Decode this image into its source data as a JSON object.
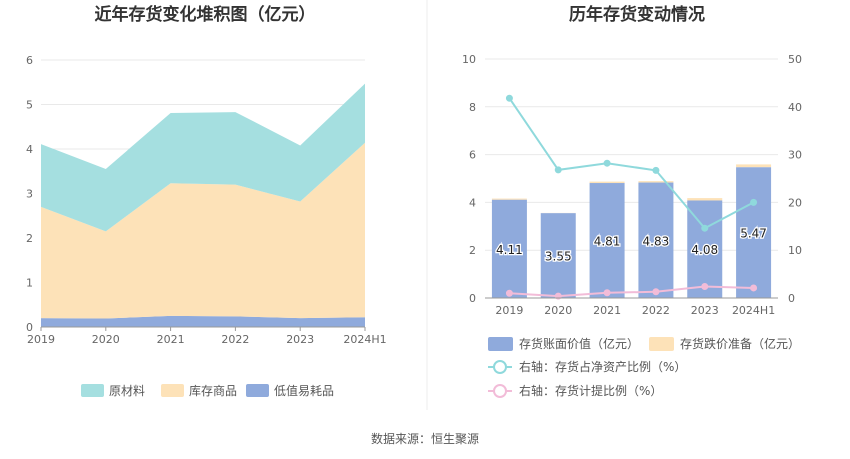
{
  "source_text": "数据来源：恒生聚源",
  "chart_data": [
    {
      "type": "area",
      "stacked": true,
      "title": "近年存货变化堆积图（亿元）",
      "categories": [
        "2019",
        "2020",
        "2021",
        "2022",
        "2023",
        "2024H1"
      ],
      "ylim": [
        0,
        6
      ],
      "yticks": [
        0,
        1,
        2,
        3,
        4,
        5,
        6
      ],
      "grid": true,
      "legend_position": "bottom",
      "series": [
        {
          "name": "低值易耗品",
          "color": "#8faadc",
          "values": [
            0.2,
            0.19,
            0.25,
            0.24,
            0.2,
            0.22
          ]
        },
        {
          "name": "库存商品",
          "color": "#fde2b8",
          "values": [
            2.5,
            1.96,
            2.98,
            2.96,
            2.62,
            3.92
          ]
        },
        {
          "name": "原材料",
          "color": "#a5dfe0",
          "values": [
            1.41,
            1.4,
            1.58,
            1.63,
            1.26,
            1.33
          ]
        }
      ],
      "legend_order": [
        "原材料",
        "库存商品",
        "低值易耗品"
      ]
    },
    {
      "type": "bar",
      "title": "历年存货变动情况",
      "categories": [
        "2019",
        "2020",
        "2021",
        "2022",
        "2023",
        "2024H1"
      ],
      "ylim": [
        0,
        10
      ],
      "yticks": [
        0,
        2,
        4,
        6,
        8,
        10
      ],
      "y2lim": [
        0,
        50
      ],
      "y2ticks": [
        0,
        10,
        20,
        30,
        40,
        50
      ],
      "grid": true,
      "legend_position": "bottom",
      "bars": [
        {
          "name": "存货账面价值（亿元）",
          "color": "#8faadc",
          "values": [
            4.11,
            3.55,
            4.81,
            4.83,
            4.08,
            5.47
          ],
          "labels": [
            "4.11",
            "3.55",
            "4.81",
            "4.83",
            "4.08",
            "5.47"
          ]
        },
        {
          "name": "存货跌价准备（亿元）",
          "color": "#fde2b8",
          "values": [
            0.05,
            0.01,
            0.06,
            0.06,
            0.1,
            0.12
          ]
        }
      ],
      "lines": [
        {
          "name": "右轴：存货占净资产比例（%）",
          "color": "#8fd9dc",
          "axis": "right",
          "values": [
            41.8,
            26.8,
            28.2,
            26.7,
            14.6,
            20.0
          ]
        },
        {
          "name": "右轴：存货计提比例（%）",
          "color": "#f2bcd8",
          "axis": "right",
          "values": [
            1.0,
            0.4,
            1.1,
            1.3,
            2.4,
            2.1
          ]
        }
      ]
    }
  ]
}
